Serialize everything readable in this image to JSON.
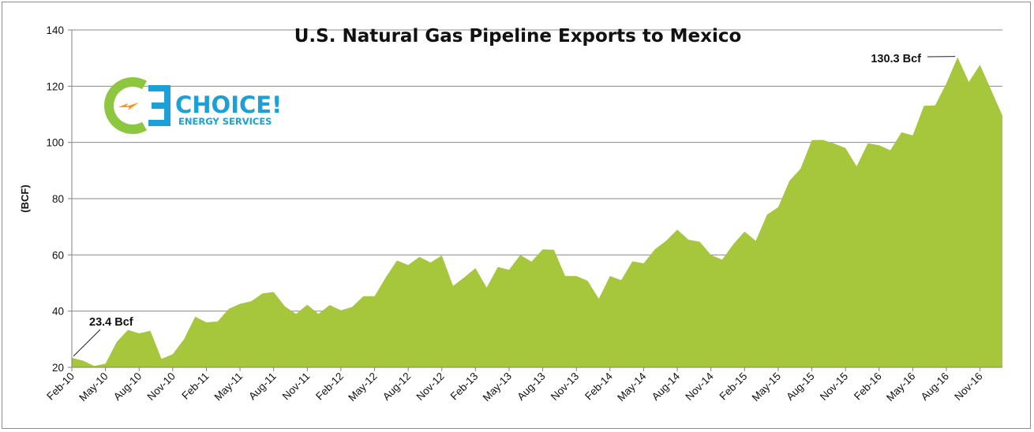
{
  "chart_data": {
    "type": "area",
    "title": "U.S. Natural Gas Pipeline Exports to Mexico",
    "ylabel": "(BCF)",
    "xlabel": "",
    "ylim": [
      20,
      140
    ],
    "yticks": [
      20,
      40,
      60,
      80,
      100,
      120,
      140
    ],
    "grid": "horizontal",
    "x_tick_labels": [
      "Feb-10",
      "May-10",
      "Aug-10",
      "Nov-10",
      "Feb-11",
      "May-11",
      "Aug-11",
      "Nov-11",
      "Feb-12",
      "May-12",
      "Aug-12",
      "Nov-12",
      "Feb-13",
      "May-13",
      "Aug-13",
      "Nov-13",
      "Feb-14",
      "May-14",
      "Aug-14",
      "Nov-14",
      "Feb-15",
      "May-15",
      "Aug-15",
      "Nov-15",
      "Feb-16",
      "May-16",
      "Aug-16",
      "Nov-16"
    ],
    "series": [
      {
        "color": "#a6c63b",
        "values": [
          23.4,
          22.4,
          20.5,
          21.3,
          29.0,
          33.3,
          32.1,
          33.0,
          23.0,
          24.7,
          30.0,
          38.0,
          36.0,
          36.3,
          40.8,
          42.6,
          43.5,
          46.3,
          46.8,
          41.7,
          39.0,
          42.3,
          39.0,
          42.2,
          40.3,
          41.5,
          45.3,
          45.3,
          52.0,
          58.0,
          56.4,
          59.3,
          57.3,
          59.8,
          49.0,
          52.0,
          55.3,
          48.4,
          55.7,
          54.7,
          60.0,
          57.6,
          62.0,
          61.8,
          52.5,
          52.5,
          50.8,
          44.4,
          52.5,
          51.0,
          57.7,
          57.0,
          62.0,
          65.0,
          69.0,
          65.4,
          64.7,
          60.0,
          58.3,
          63.8,
          68.3,
          65.0,
          74.3,
          77.0,
          86.3,
          90.7,
          100.8,
          100.9,
          99.6,
          98.0,
          91.5,
          99.7,
          99.0,
          97.2,
          103.6,
          102.5,
          113.0,
          113.2,
          121.0,
          130.3,
          121.5,
          127.6,
          118.6,
          109.5
        ]
      }
    ],
    "annotations": [
      {
        "text": "23.4 Bcf",
        "index": 0,
        "value": 23.4
      },
      {
        "text": "130.3 Bcf",
        "index": 79,
        "value": 130.3
      }
    ]
  },
  "logo": {
    "name": "CHOICE!",
    "tagline": "ENERGY SERVICES",
    "green": "#8dc63f",
    "blue": "#1ba0d8",
    "orange": "#f7941d"
  }
}
